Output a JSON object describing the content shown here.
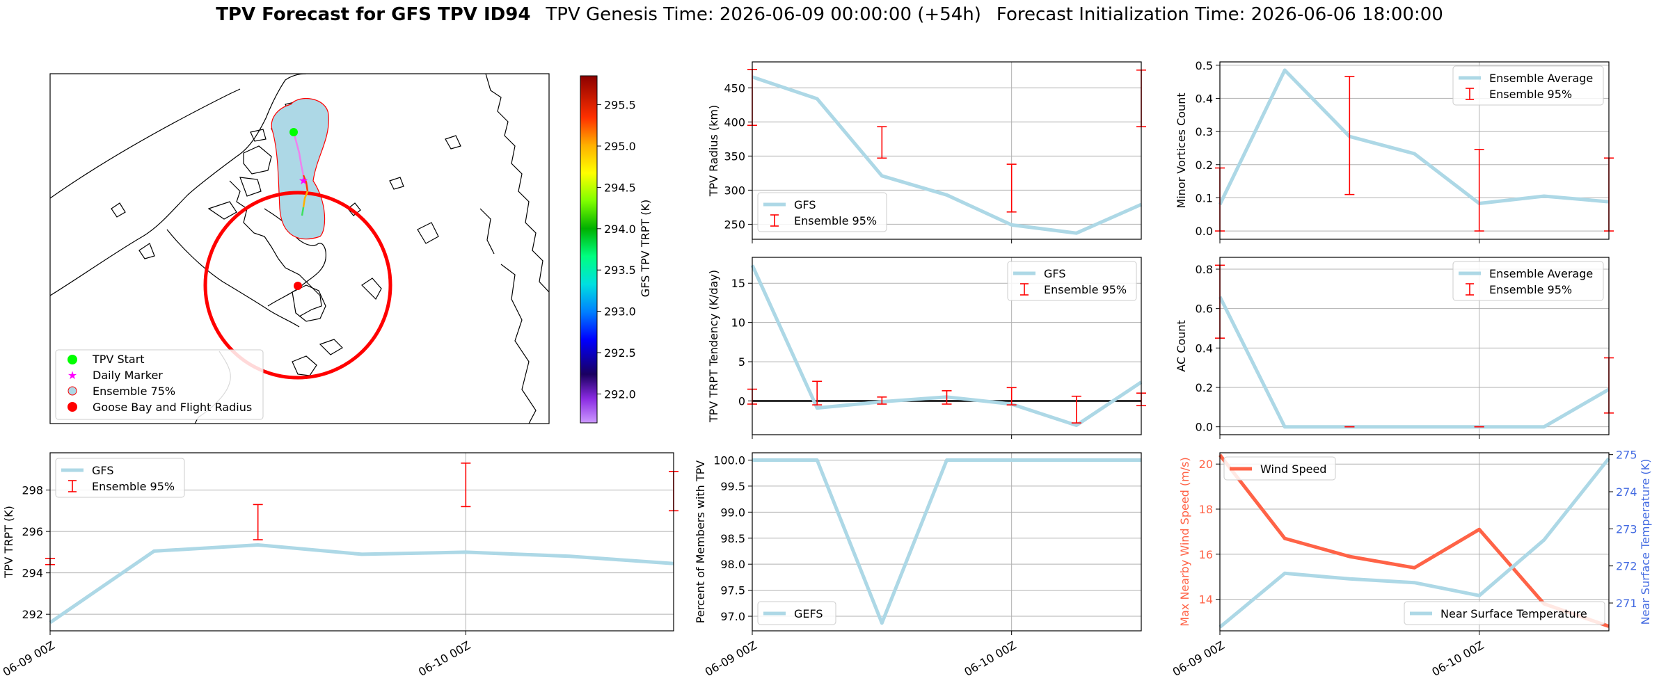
{
  "title": {
    "main": "TPV Forecast for GFS TPV ID94",
    "genesis": "TPV Genesis Time: 2026-06-09 00:00:00 (+54h)",
    "init": "Forecast Initialization Time: 2026-06-06 18:00:00"
  },
  "colors": {
    "gfs": "#add8e6",
    "ensemble": "#ff0000",
    "wind": "#ff6347",
    "temp_axis": "#4169e1",
    "zero_line": "#000000",
    "goose_bay": "#ff0000",
    "tpv_start": "#00ff00",
    "daily_marker": "#ff00ff",
    "ensemble_75_fill": "#add8e6"
  },
  "map_legend": [
    {
      "label": "TPV Start",
      "icon": "green-dot-icon"
    },
    {
      "label": "Daily Marker",
      "icon": "magenta-star-icon"
    },
    {
      "label": "Ensemble 75%",
      "icon": "lightblue-circle-icon"
    },
    {
      "label": "Goose Bay and Flight Radius",
      "icon": "red-dot-icon"
    }
  ],
  "colorbar": {
    "label": "GFS TPV TRPT (K)",
    "ticks": [
      "295.5",
      "295.0",
      "294.5",
      "294.0",
      "293.5",
      "293.0",
      "292.5",
      "292.0"
    ],
    "range": [
      291.65,
      295.85
    ],
    "colormap": "gist_ncar"
  },
  "x_ticks": [
    "06-09 00Z",
    "06-10 00Z"
  ],
  "chart_data": [
    {
      "id": "radius",
      "type": "line",
      "ylabel": "TPV Radius (km)",
      "ylim": [
        228,
        488
      ],
      "yticks": [
        "250",
        "300",
        "350",
        "400",
        "450"
      ],
      "ytick_values": [
        250,
        300,
        350,
        400,
        450
      ],
      "x": [
        0,
        6,
        12,
        18,
        24,
        30,
        36
      ],
      "xlim": [
        0,
        36
      ],
      "series": [
        {
          "name": "GFS",
          "values": [
            466,
            434,
            321,
            293,
            249,
            237,
            279
          ]
        }
      ],
      "error_bars": {
        "name": "Ensemble 95%",
        "x": [
          0,
          12,
          24,
          36
        ],
        "low": [
          395,
          347,
          268,
          393
        ],
        "high": [
          477,
          393,
          338,
          476
        ]
      },
      "legend": "lower-left"
    },
    {
      "id": "minor-vortices",
      "type": "line",
      "ylabel": "Minor Vortices Count",
      "ylim": [
        -0.025,
        0.51
      ],
      "yticks": [
        "0.0",
        "0.1",
        "0.2",
        "0.3",
        "0.4",
        "0.5"
      ],
      "ytick_values": [
        0,
        0.1,
        0.2,
        0.3,
        0.4,
        0.5
      ],
      "x": [
        0,
        6,
        12,
        18,
        24,
        30,
        36
      ],
      "xlim": [
        0,
        36
      ],
      "series": [
        {
          "name": "Ensemble Average",
          "values": [
            0.08,
            0.485,
            0.285,
            0.233,
            0.083,
            0.105,
            0.088
          ]
        }
      ],
      "error_bars": {
        "name": "Ensemble 95%",
        "x": [
          0,
          12,
          24,
          36
        ],
        "low": [
          0,
          0.11,
          0,
          0
        ],
        "high": [
          0.19,
          0.466,
          0.246,
          0.22
        ]
      },
      "legend": "upper-right"
    },
    {
      "id": "trpt-tendency",
      "type": "line",
      "ylabel": "TPV TRPT Tendency (K/day)",
      "ylim": [
        -4.3,
        18.3
      ],
      "yticks": [
        "0",
        "5",
        "10",
        "15"
      ],
      "ytick_values": [
        0,
        5,
        10,
        15
      ],
      "x": [
        0,
        6,
        12,
        18,
        24,
        30,
        36
      ],
      "xlim": [
        0,
        36
      ],
      "zero_line": true,
      "series": [
        {
          "name": "GFS",
          "values": [
            17.3,
            -0.9,
            -0.1,
            0.5,
            -0.4,
            -3.1,
            2.4
          ]
        }
      ],
      "error_bars": {
        "name": "Ensemble 95%",
        "x": [
          0,
          6,
          12,
          18,
          24,
          30,
          36
        ],
        "low": [
          -0.4,
          -0.5,
          -0.4,
          -0.4,
          -0.5,
          -2.8,
          -0.6
        ],
        "high": [
          1.5,
          2.5,
          0.5,
          1.3,
          1.7,
          0.6,
          1.0
        ]
      },
      "legend": "upper-right"
    },
    {
      "id": "ac-count",
      "type": "line",
      "ylabel": "AC Count",
      "ylim": [
        -0.04,
        0.86
      ],
      "yticks": [
        "0.0",
        "0.2",
        "0.4",
        "0.6",
        "0.8"
      ],
      "ytick_values": [
        0,
        0.2,
        0.4,
        0.6,
        0.8
      ],
      "x": [
        0,
        6,
        12,
        18,
        24,
        30,
        36
      ],
      "xlim": [
        0,
        36
      ],
      "series": [
        {
          "name": "Ensemble Average",
          "values": [
            0.66,
            0.0,
            0.0,
            0.0,
            0.0,
            0.0,
            0.19
          ]
        }
      ],
      "error_bars": {
        "name": "Ensemble 95%",
        "x": [
          0,
          12,
          24,
          36
        ],
        "low": [
          0.45,
          0,
          0,
          0.07
        ],
        "high": [
          0.82,
          0,
          0,
          0.35
        ]
      },
      "legend": "upper-right"
    },
    {
      "id": "trpt",
      "type": "line",
      "ylabel": "TPV TRPT (K)",
      "ylim": [
        291.2,
        299.8
      ],
      "yticks": [
        "292",
        "294",
        "296",
        "298"
      ],
      "ytick_values": [
        292,
        294,
        296,
        298
      ],
      "x": [
        0,
        6,
        12,
        18,
        24,
        30,
        36
      ],
      "xlim": [
        0,
        36
      ],
      "series": [
        {
          "name": "GFS",
          "values": [
            291.6,
            295.05,
            295.35,
            294.9,
            295.0,
            294.8,
            294.45
          ]
        }
      ],
      "error_bars": {
        "name": "Ensemble 95%",
        "x": [
          0,
          12,
          24,
          36
        ],
        "low": [
          294.4,
          295.6,
          297.2,
          297.0
        ],
        "high": [
          294.7,
          297.3,
          299.3,
          298.9
        ]
      },
      "legend": "upper-left"
    },
    {
      "id": "percent-members",
      "type": "line",
      "ylabel": "Percent of Members with TPV",
      "ylim": [
        96.72,
        100.14
      ],
      "yticks": [
        "97.0",
        "97.5",
        "98.0",
        "98.5",
        "99.0",
        "99.5",
        "100.0"
      ],
      "ytick_values": [
        97.0,
        97.5,
        98.0,
        98.5,
        99.0,
        99.5,
        100.0
      ],
      "x": [
        0,
        6,
        12,
        18,
        24,
        30,
        36
      ],
      "xlim": [
        0,
        36
      ],
      "series": [
        {
          "name": "GEFS",
          "values": [
            100.0,
            100.0,
            96.87,
            100.0,
            100.0,
            100.0,
            100.0
          ]
        }
      ],
      "legend": "lower-left"
    },
    {
      "id": "wind-temp",
      "type": "line",
      "ylabel": "Max Nearby Wind Speed (m/s)",
      "ylabel_right": "Near Surface Temperature (K)",
      "ylim": [
        12.6,
        20.5
      ],
      "yticks": [
        "14",
        "16",
        "18",
        "20"
      ],
      "ytick_values": [
        14,
        16,
        18,
        20
      ],
      "ylim_right": [
        270.25,
        275.05
      ],
      "yticks_right": [
        "271",
        "272",
        "273",
        "274",
        "275"
      ],
      "ytick_values_right": [
        271,
        272,
        273,
        274,
        275
      ],
      "x": [
        0,
        6,
        12,
        18,
        24,
        30,
        36
      ],
      "xlim": [
        0,
        36
      ],
      "series": [
        {
          "name": "Wind Speed",
          "axis": "left",
          "values": [
            20.4,
            16.7,
            15.9,
            15.4,
            17.1,
            13.8,
            12.8
          ]
        },
        {
          "name": "Near Surface Temperature",
          "axis": "right",
          "values": [
            270.35,
            271.8,
            271.65,
            271.55,
            271.2,
            272.7,
            274.9
          ]
        }
      ],
      "legend": "upper-left / lower-right"
    }
  ]
}
